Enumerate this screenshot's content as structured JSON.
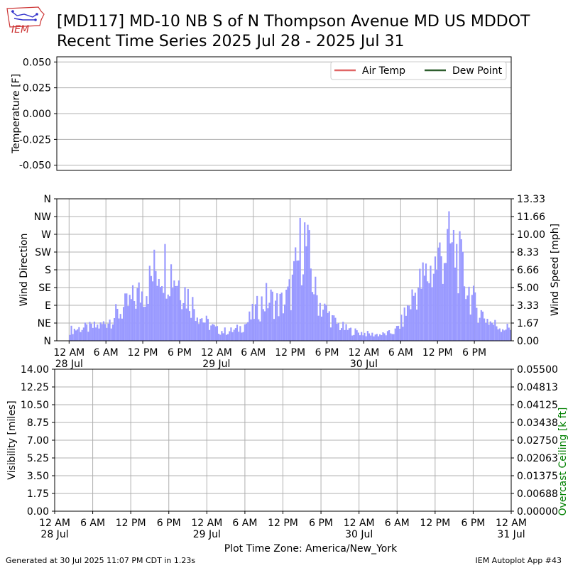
{
  "header": {
    "title_line1": "[MD117] MD-10 NB S of N Thompson Avenue  MD US MDDOT",
    "title_line2": "Recent Time Series 2025 Jul 28 - 2025 Jul 31",
    "logo_text": "IEM"
  },
  "footer": {
    "generated": "Generated at 30 Jul 2025 11:07 PM CDT in 1.23s",
    "app": "IEM Autoplot App #43"
  },
  "colors": {
    "air_temp": "#e06666",
    "dew_point": "#2e5e2e",
    "wind_bar": "#9999ff",
    "ceiling_label": "#008000",
    "grid": "#b0b0b0"
  },
  "chart_data": [
    {
      "type": "line",
      "panel": "temperature",
      "ylabel": "Temperature [F]",
      "ylim": [
        -0.055,
        0.055
      ],
      "yticks": [
        "0.050",
        "0.025",
        "0.000",
        "-0.025",
        "-0.050"
      ],
      "ytick_values": [
        0.05,
        0.025,
        0.0,
        -0.025,
        -0.05
      ],
      "legend_placement": "top-right",
      "series": [
        {
          "name": "Air Temp",
          "values": []
        },
        {
          "name": "Dew Point",
          "values": []
        }
      ],
      "grid": true
    },
    {
      "type": "bar",
      "panel": "wind",
      "ylabel": "Wind Direction",
      "y2label": "Wind Speed [mph]",
      "left_ticks": [
        "N",
        "NE",
        "E",
        "SE",
        "S",
        "SW",
        "W",
        "NW",
        "N"
      ],
      "right_ticks": [
        "0.00",
        "1.67",
        "3.33",
        "5.00",
        "6.66",
        "8.33",
        "10.00",
        "11.66",
        "13.33"
      ],
      "ylim": [
        0,
        13.33
      ],
      "x_ticks": [
        "12 AM",
        "6 AM",
        "12 PM",
        "6 PM",
        "12 AM",
        "6 AM",
        "12 PM",
        "6 PM",
        "12 AM",
        "6 AM",
        "12 PM",
        "6 PM"
      ],
      "x_day_labels": [
        "28 Jul",
        "29 Jul",
        "30 Jul"
      ],
      "xlim_hours": [
        -2,
        72
      ],
      "start": "2025-07-28 00:00",
      "step_minutes": 15,
      "hourly_mean_mph": [
        1.0,
        1.1,
        1.2,
        1.2,
        1.3,
        1.4,
        1.8,
        2.2,
        2.6,
        3.1,
        3.6,
        4.2,
        4.7,
        5.5,
        6.7,
        7.3,
        6.9,
        6.3,
        5.4,
        4.4,
        3.4,
        2.5,
        1.8,
        1.4,
        1.0,
        0.9,
        0.9,
        1.0,
        1.3,
        1.8,
        2.6,
        3.3,
        3.9,
        3.7,
        3.4,
        3.6,
        4.6,
        6.9,
        10.0,
        7.4,
        4.4,
        3.2,
        2.6,
        1.8,
        1.4,
        1.1,
        0.9,
        0.8,
        0.7,
        0.6,
        0.6,
        0.6,
        0.7,
        0.9,
        1.7,
        3.0,
        4.3,
        5.2,
        6.0,
        6.6,
        7.6,
        8.4,
        8.8,
        8.0,
        6.3,
        4.6,
        3.3,
        2.6,
        2.0,
        1.6,
        1.3,
        1.2
      ],
      "series": [
        {
          "name": "Wind Speed [mph]"
        }
      ],
      "grid": true
    },
    {
      "type": "line",
      "panel": "visibility",
      "ylabel": "Visibility [miles]",
      "y2label": "Overcast Ceiling [k ft]",
      "left_ticks": [
        "0.00",
        "1.75",
        "3.50",
        "5.25",
        "7.00",
        "8.75",
        "10.50",
        "12.25",
        "14.00"
      ],
      "right_ticks": [
        "0.00000",
        "0.00688",
        "0.01375",
        "0.02063",
        "0.02750",
        "0.03438",
        "0.04125",
        "0.04813",
        "0.05500"
      ],
      "ylim": [
        0,
        14
      ],
      "y2lim": [
        0,
        0.055
      ],
      "x_ticks": [
        "12 AM",
        "6 AM",
        "12 PM",
        "6 PM",
        "12 AM",
        "6 AM",
        "12 PM",
        "6 PM",
        "12 AM",
        "6 AM",
        "12 PM",
        "6 PM",
        "12 AM"
      ],
      "x_day_labels": [
        "28 Jul",
        "29 Jul",
        "30 Jul",
        "31 Jul"
      ],
      "xlabel": "Plot Time Zone: America/New_York",
      "series": [],
      "grid": true
    }
  ]
}
